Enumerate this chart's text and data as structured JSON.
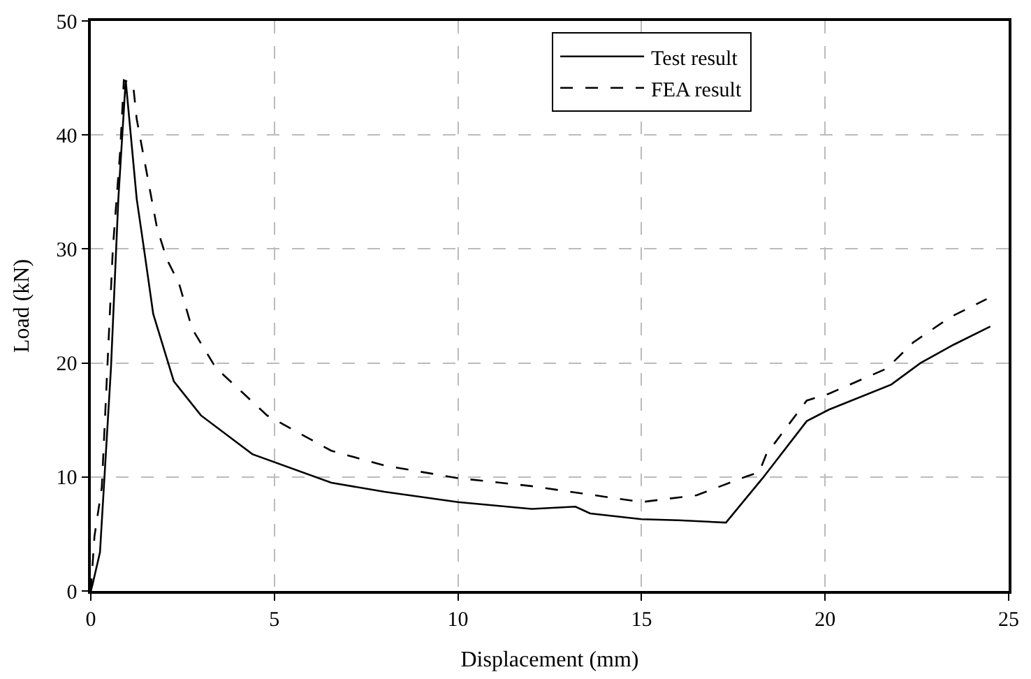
{
  "chart_data": {
    "type": "line",
    "xlabel": "Displacement (mm)",
    "ylabel": "Load (kN)",
    "xlim": [
      0,
      25
    ],
    "ylim": [
      0,
      50
    ],
    "xticks": [
      0,
      5,
      10,
      15,
      20,
      25
    ],
    "yticks": [
      0,
      10,
      20,
      30,
      40,
      50
    ],
    "grid": true,
    "legend": "top right",
    "marker": "none",
    "series": [
      {
        "name": "Test result",
        "color": "#000000",
        "line_style": "solid",
        "x": [
          0,
          0.05,
          0.25,
          0.55,
          0.75,
          0.95,
          1.25,
          1.44,
          1.7,
          2.26,
          3.0,
          4.4,
          6.55,
          8,
          10,
          12,
          13.2,
          13.6,
          15,
          16,
          17.3,
          18.3,
          19.5,
          20.1,
          21.8,
          22.6,
          23.5,
          24.5
        ],
        "values": [
          0,
          0.6,
          3.4,
          19.6,
          34.4,
          44.8,
          34.4,
          30.2,
          24.3,
          18.4,
          15.4,
          12,
          9.5,
          8.7,
          7.8,
          7.2,
          7.4,
          6.8,
          6.3,
          6.2,
          6.0,
          9.9,
          14.9,
          15.9,
          18.1,
          20,
          21.6,
          23.2
        ]
      },
      {
        "name": "FEA result",
        "color": "#000000",
        "line_style": "dashed",
        "x": [
          0,
          0.1,
          0.3,
          0.6,
          0.8,
          0.9,
          1.15,
          1.25,
          1.8,
          2.07,
          2.4,
          2.76,
          3.4,
          4.8,
          6.55,
          8,
          10,
          12,
          15,
          16.5,
          17.9,
          18.2,
          18.4,
          19.5,
          20.1,
          21.6,
          21.8,
          22.4,
          23.4,
          24.4
        ],
        "values": [
          0,
          4.8,
          9.1,
          30,
          38.6,
          44.8,
          44.5,
          41.4,
          31.9,
          29.1,
          27,
          23,
          19.6,
          15.4,
          12.3,
          11,
          9.9,
          9.2,
          7.8,
          8.4,
          10.1,
          10.4,
          12,
          16.7,
          17.3,
          19.4,
          19.9,
          21.8,
          24,
          25.6
        ]
      }
    ]
  }
}
